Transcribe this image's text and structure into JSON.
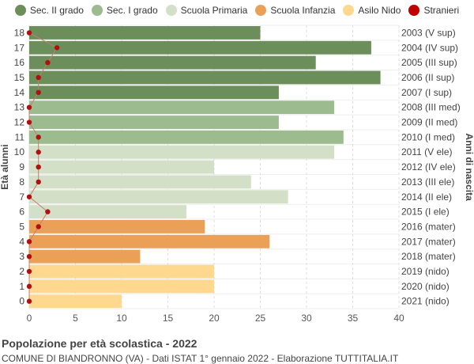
{
  "chart_data": {
    "type": "bar",
    "orientation": "horizontal",
    "title": "Popolazione per età scolastica - 2022",
    "subtitle": "COMUNE DI BIANDRONNO (VA) - Dati ISTAT 1° gennaio 2022 - Elaborazione TUTTITALIA.IT",
    "ylabel_left": "Età alunni",
    "ylabel_right": "Anni di nascita",
    "xlim": [
      0,
      40
    ],
    "xticks": [
      0,
      5,
      10,
      15,
      20,
      25,
      30,
      35,
      40
    ],
    "grid": true,
    "legend_position": "top",
    "legend": [
      {
        "label": "Sec. II grado",
        "color": "#6b8e5a"
      },
      {
        "label": "Sec. I grado",
        "color": "#9cbb8e"
      },
      {
        "label": "Scuola Primaria",
        "color": "#d3dfc6"
      },
      {
        "label": "Scuola Infanzia",
        "color": "#eba058"
      },
      {
        "label": "Asilo Nido",
        "color": "#fdd88e"
      },
      {
        "label": "Stranieri",
        "color": "#c00000"
      }
    ],
    "categories": [
      "18",
      "17",
      "16",
      "15",
      "14",
      "13",
      "12",
      "11",
      "10",
      "9",
      "8",
      "7",
      "6",
      "5",
      "4",
      "3",
      "2",
      "1",
      "0"
    ],
    "birth_labels": [
      "2003 (V sup)",
      "2004 (IV sup)",
      "2005 (III sup)",
      "2006 (II sup)",
      "2007 (I sup)",
      "2008 (III med)",
      "2009 (II med)",
      "2010 (I med)",
      "2011 (V ele)",
      "2012 (IV ele)",
      "2013 (III ele)",
      "2014 (II ele)",
      "2015 (I ele)",
      "2016 (mater)",
      "2017 (mater)",
      "2018 (mater)",
      "2019 (nido)",
      "2020 (nido)",
      "2021 (nido)"
    ],
    "values": [
      25,
      37,
      31,
      38,
      27,
      33,
      27,
      34,
      33,
      20,
      24,
      28,
      17,
      19,
      26,
      12,
      20,
      20,
      10
    ],
    "groups": [
      0,
      0,
      0,
      0,
      0,
      1,
      1,
      1,
      2,
      2,
      2,
      2,
      2,
      3,
      3,
      3,
      4,
      4,
      4
    ],
    "stranieri": [
      0,
      3,
      2,
      1,
      1,
      0,
      0,
      1,
      1,
      1,
      1,
      0,
      2,
      1,
      0,
      0,
      0,
      0,
      0
    ]
  }
}
